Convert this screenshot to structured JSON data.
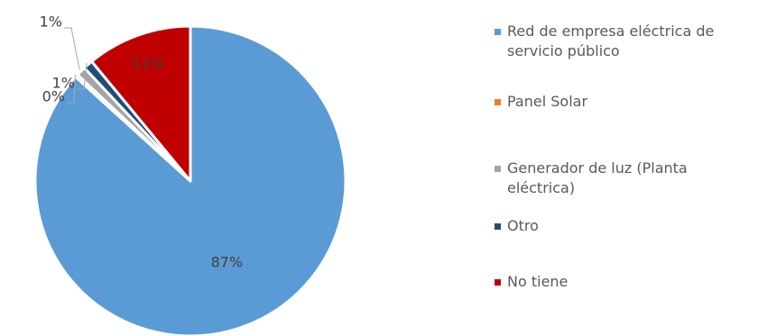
{
  "chart_data": {
    "type": "pie",
    "title": "",
    "categories": [
      "Red de empresa eléctrica de servicio público",
      "Panel Solar",
      "Generador de luz (Planta eléctrica)",
      "Otro",
      "No tiene"
    ],
    "values": [
      87,
      0,
      1,
      1,
      11
    ],
    "labels": [
      "87%",
      "0%",
      "1%",
      "1%",
      "11%"
    ],
    "colors": [
      "#5B9BD5",
      "#ED7D31",
      "#A5A5A5",
      "#1F4E79",
      "#C00000"
    ],
    "legend_position": "right"
  }
}
